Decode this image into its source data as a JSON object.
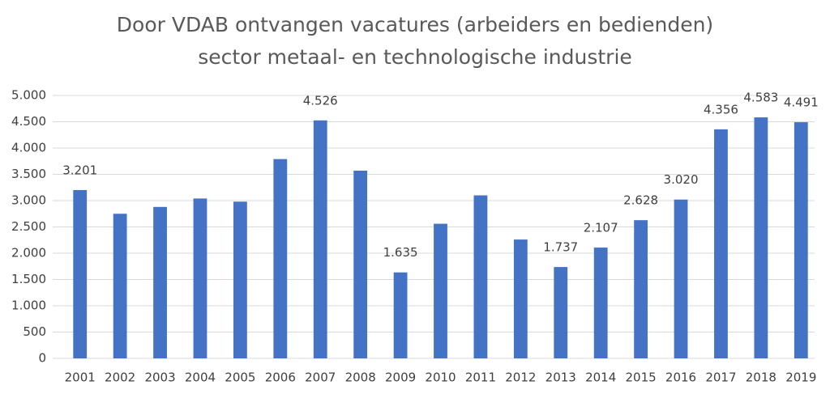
{
  "chart_data": {
    "type": "bar",
    "title": "Door VDAB ontvangen vacatures (arbeiders en bedienden)",
    "subtitle": "sector metaal- en technologische industrie",
    "categories": [
      "2001",
      "2002",
      "2003",
      "2004",
      "2005",
      "2006",
      "2007",
      "2008",
      "2009",
      "2010",
      "2011",
      "2012",
      "2013",
      "2014",
      "2015",
      "2016",
      "2017",
      "2018",
      "2019"
    ],
    "values": [
      3201,
      2750,
      2880,
      3040,
      2980,
      3790,
      4526,
      3570,
      1635,
      2560,
      3100,
      2260,
      1737,
      2107,
      2628,
      3020,
      4356,
      4583,
      4491
    ],
    "value_labels": [
      "3.201",
      null,
      null,
      null,
      null,
      null,
      "4.526",
      null,
      "1.635",
      null,
      null,
      null,
      "1.737",
      "2.107",
      "2.628",
      "3.020",
      "4.356",
      "4.583",
      "4.491"
    ],
    "color": "#4472c4",
    "ylim": [
      0,
      5000
    ],
    "yticks": [
      0,
      500,
      {
        "value": 1000,
        "label": "1.000"
      },
      {
        "value": 1500,
        "label": "1.500"
      },
      {
        "value": 2000,
        "label": "2.000"
      },
      {
        "value": 2500,
        "label": "2.500"
      },
      {
        "value": 3000,
        "label": "3.000"
      },
      {
        "value": 3500,
        "label": "3.500"
      },
      {
        "value": 4000,
        "label": "4.000"
      },
      {
        "value": 4500,
        "label": "4.500"
      },
      {
        "value": 5000,
        "label": "5.000"
      }
    ],
    "grid": true
  }
}
